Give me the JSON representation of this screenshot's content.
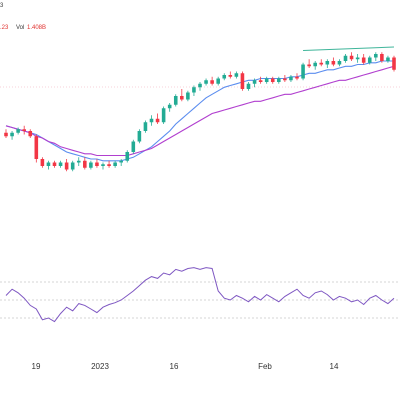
{
  "header": {
    "top_fragment": "3",
    "price_fragment": ".23",
    "volume_label": "Vol",
    "volume_value": "1.408B"
  },
  "x_axis": {
    "tick_labels": [
      "19",
      "2023",
      "16",
      "Feb",
      "14"
    ]
  },
  "colors": {
    "up": "#22ab94",
    "down": "#f23645",
    "ma_fast": "#5b8def",
    "ma_slow": "#b13fcf",
    "trendline": "#3fb59a",
    "rsi": "#7e57c2",
    "price_line": "#f0a3b6",
    "grid": "#c9c9c9"
  },
  "chart_data": [
    {
      "type": "candlestick",
      "title": "",
      "x_unit": "trading day index",
      "ylim": [
        0,
        100
      ],
      "y_unit": "relative price scale (0-100, estimated; no price axis visible)",
      "candles": [
        [
          0,
          82,
          84,
          79,
          80
        ],
        [
          1,
          80,
          83,
          78,
          82
        ],
        [
          2,
          82,
          85,
          81,
          84
        ],
        [
          3,
          84,
          86,
          81,
          83
        ],
        [
          4,
          83,
          84,
          79,
          80
        ],
        [
          5,
          80,
          81,
          65,
          67
        ],
        [
          6,
          67,
          68,
          62,
          63
        ],
        [
          7,
          63,
          66,
          61,
          65
        ],
        [
          8,
          65,
          66,
          62,
          63
        ],
        [
          9,
          63,
          66,
          62,
          65
        ],
        [
          10,
          65,
          67,
          60,
          61
        ],
        [
          11,
          61,
          66,
          60,
          65
        ],
        [
          12,
          65,
          68,
          63,
          66
        ],
        [
          13,
          66,
          68,
          61,
          62
        ],
        [
          14,
          62,
          66,
          61,
          65
        ],
        [
          15,
          65,
          67,
          62,
          63
        ],
        [
          16,
          63,
          65,
          61,
          64
        ],
        [
          17,
          64,
          66,
          62,
          63
        ],
        [
          18,
          63,
          66,
          62,
          65
        ],
        [
          19,
          65,
          67,
          63,
          66
        ],
        [
          20,
          66,
          72,
          65,
          71
        ],
        [
          21,
          71,
          78,
          70,
          77
        ],
        [
          22,
          77,
          84,
          76,
          83
        ],
        [
          23,
          83,
          89,
          82,
          88
        ],
        [
          24,
          88,
          92,
          86,
          90
        ],
        [
          25,
          90,
          93,
          87,
          88
        ],
        [
          26,
          88,
          97,
          87,
          96
        ],
        [
          27,
          96,
          99,
          94,
          98
        ],
        [
          28,
          98,
          104,
          97,
          103
        ],
        [
          29,
          103,
          107,
          100,
          101
        ],
        [
          30,
          101,
          106,
          100,
          105
        ],
        [
          31,
          105,
          109,
          103,
          108
        ],
        [
          32,
          108,
          111,
          106,
          110
        ],
        [
          33,
          110,
          113,
          109,
          112
        ],
        [
          34,
          112,
          114,
          109,
          110
        ],
        [
          35,
          110,
          114,
          109,
          113
        ],
        [
          36,
          113,
          116,
          112,
          115
        ],
        [
          37,
          115,
          117,
          113,
          114
        ],
        [
          38,
          114,
          117,
          113,
          116
        ],
        [
          39,
          116,
          117,
          106,
          107
        ],
        [
          40,
          107,
          111,
          106,
          110
        ],
        [
          41,
          110,
          113,
          108,
          112
        ],
        [
          42,
          112,
          114,
          110,
          111
        ],
        [
          43,
          111,
          114,
          110,
          113
        ],
        [
          44,
          113,
          114,
          110,
          111
        ],
        [
          45,
          111,
          114,
          110,
          113
        ],
        [
          46,
          113,
          115,
          111,
          112
        ],
        [
          47,
          112,
          115,
          111,
          114
        ],
        [
          48,
          114,
          116,
          112,
          113
        ],
        [
          49,
          113,
          122,
          112,
          121
        ],
        [
          50,
          121,
          124,
          119,
          120
        ],
        [
          51,
          120,
          123,
          118,
          122
        ],
        [
          52,
          122,
          124,
          120,
          121
        ],
        [
          53,
          121,
          124,
          119,
          123
        ],
        [
          54,
          123,
          125,
          120,
          121
        ],
        [
          55,
          121,
          124,
          120,
          123
        ],
        [
          56,
          123,
          127,
          122,
          126
        ],
        [
          57,
          126,
          128,
          123,
          124
        ],
        [
          58,
          124,
          127,
          122,
          125
        ],
        [
          59,
          125,
          127,
          121,
          122
        ],
        [
          60,
          122,
          126,
          121,
          125
        ],
        [
          61,
          125,
          128,
          123,
          127
        ],
        [
          62,
          127,
          128,
          122,
          123
        ],
        [
          63,
          123,
          126,
          122,
          125
        ],
        [
          64,
          125,
          126,
          117,
          118
        ]
      ],
      "moving_averages": [
        {
          "values": [
            86,
            85,
            84,
            83,
            82,
            81,
            79,
            77,
            75,
            73,
            71,
            70,
            69,
            68,
            67,
            67,
            66,
            66,
            66,
            66,
            67,
            68,
            70,
            72,
            74,
            77,
            80,
            83,
            87,
            90,
            93,
            96,
            99,
            102,
            104,
            106,
            108,
            109,
            110,
            111,
            112,
            112,
            113,
            113,
            113,
            113,
            113,
            114,
            114,
            115,
            116,
            116,
            117,
            118,
            118,
            119,
            120,
            120,
            121,
            121,
            122,
            122,
            123,
            123,
            123
          ]
        },
        {
          "values": [
            86,
            85,
            84,
            83,
            82,
            80,
            79,
            77,
            76,
            74,
            73,
            72,
            71,
            70,
            70,
            69,
            69,
            69,
            69,
            69,
            69,
            70,
            71,
            72,
            73,
            75,
            77,
            79,
            81,
            83,
            85,
            87,
            89,
            91,
            93,
            94,
            95,
            96,
            97,
            98,
            99,
            100,
            100,
            101,
            102,
            103,
            104,
            104,
            105,
            106,
            107,
            108,
            109,
            110,
            111,
            112,
            112,
            113,
            114,
            115,
            116,
            117,
            118,
            119,
            120
          ]
        }
      ],
      "trendlines": [
        {
          "points": [
            [
              49,
              129
            ],
            [
              64,
              131
            ]
          ]
        }
      ]
    },
    {
      "type": "line",
      "title": "",
      "ylim": [
        0,
        100
      ],
      "series": [
        {
          "values": [
            55,
            62,
            58,
            52,
            44,
            40,
            28,
            30,
            26,
            35,
            42,
            38,
            46,
            44,
            40,
            36,
            42,
            45,
            47,
            50,
            55,
            60,
            66,
            72,
            76,
            74,
            80,
            78,
            84,
            82,
            85,
            86,
            84,
            86,
            85,
            60,
            52,
            50,
            55,
            52,
            48,
            54,
            50,
            56,
            52,
            48,
            54,
            58,
            62,
            55,
            52,
            58,
            60,
            56,
            50,
            54,
            52,
            48,
            50,
            45,
            52,
            55,
            50,
            46,
            52
          ]
        }
      ]
    }
  ]
}
